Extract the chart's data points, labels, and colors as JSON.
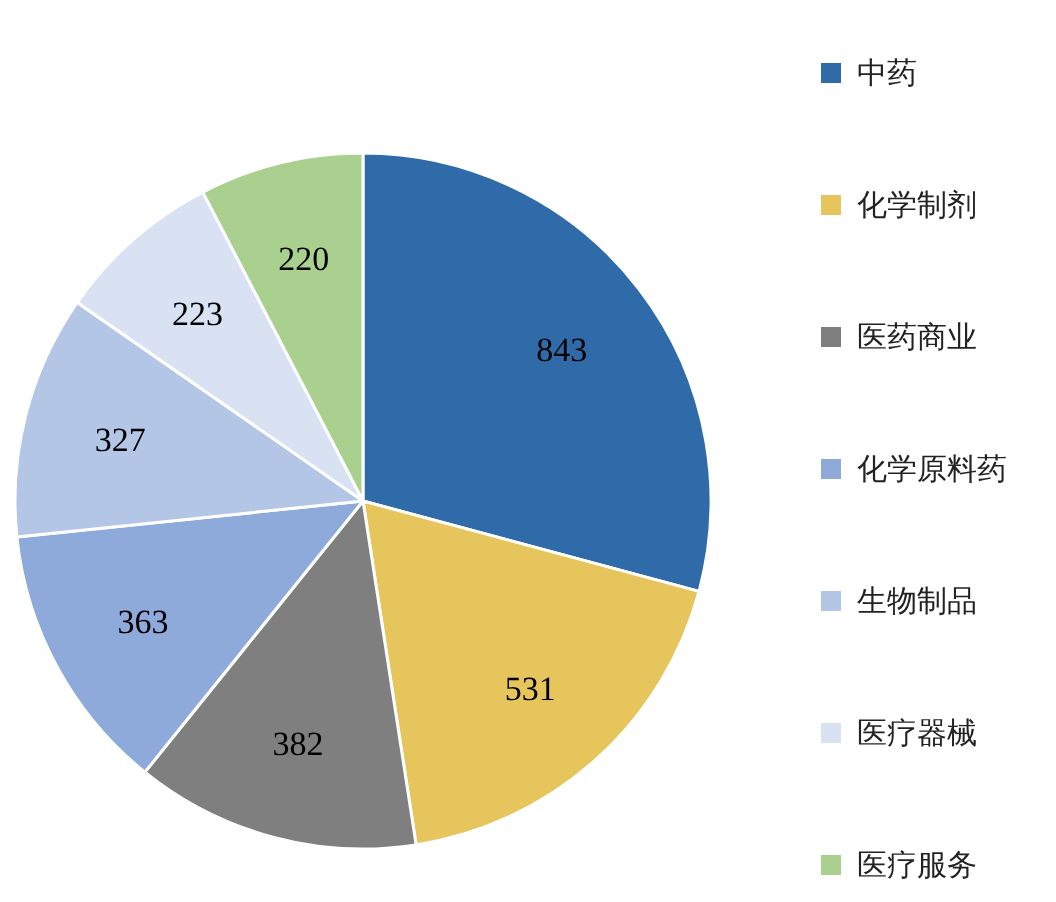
{
  "chart_data": {
    "type": "pie",
    "categories": [
      "中药",
      "化学制剂",
      "医药商业",
      "化学原料药",
      "生物制品",
      "医疗器械",
      "医疗服务"
    ],
    "values": [
      843,
      531,
      382,
      363,
      327,
      223,
      220
    ],
    "colors": [
      "#2e6ba8",
      "#e6c65c",
      "#7f7f7f",
      "#8eaadb",
      "#b4c6e6",
      "#d9e2f2",
      "#a9d08e"
    ],
    "data_labels": true,
    "legend": "right"
  }
}
